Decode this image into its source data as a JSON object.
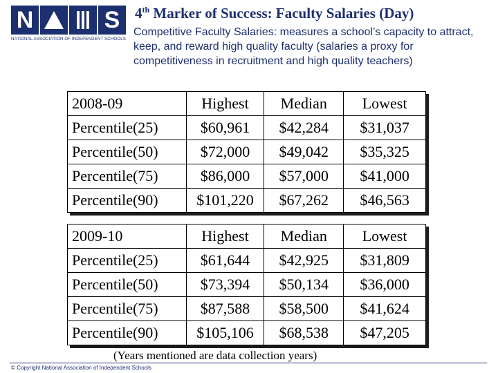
{
  "logo": {
    "letters": [
      "N",
      "A",
      "I",
      "S"
    ],
    "caption": "NATIONAL ASSOCIATION OF INDEPENDENT SCHOOLS",
    "color": "#1c2f6e"
  },
  "header": {
    "title_num": "4",
    "title_sup": "th",
    "title_rest": " Marker of Success: Faculty Salaries (Day)",
    "subtitle": "Competitive Faculty Salaries: measures a school’s capacity to attract, keep, and reward high quality faculty (salaries a proxy for competitiveness in recruitment and high quality teachers)"
  },
  "tables": [
    {
      "header": [
        "2008-09",
        "Highest",
        "Median",
        "Lowest"
      ],
      "rows": [
        [
          "Percentile(25)",
          "$60,961",
          "$42,284",
          "$31,037"
        ],
        [
          "Percentile(50)",
          "$72,000",
          "$49,042",
          "$35,325"
        ],
        [
          "Percentile(75)",
          "$86,000",
          "$57,000",
          "$41,000"
        ],
        [
          "Percentile(90)",
          "$101,220",
          "$67,262",
          "$46,563"
        ]
      ]
    },
    {
      "header": [
        "2009-10",
        "Highest",
        "Median",
        "Lowest"
      ],
      "rows": [
        [
          "Percentile(25)",
          "$61,644",
          "$42,925",
          "$31,809"
        ],
        [
          "Percentile(50)",
          "$73,394",
          "$50,134",
          "$36,000"
        ],
        [
          "Percentile(75)",
          "$87,588",
          "$58,500",
          "$41,624"
        ],
        [
          "Percentile(90)",
          "$105,106",
          "$68,538",
          "$47,205"
        ]
      ]
    }
  ],
  "note": "(Years mentioned are data collection years)",
  "footer": "© Copyright National Association of Independent Schools"
}
